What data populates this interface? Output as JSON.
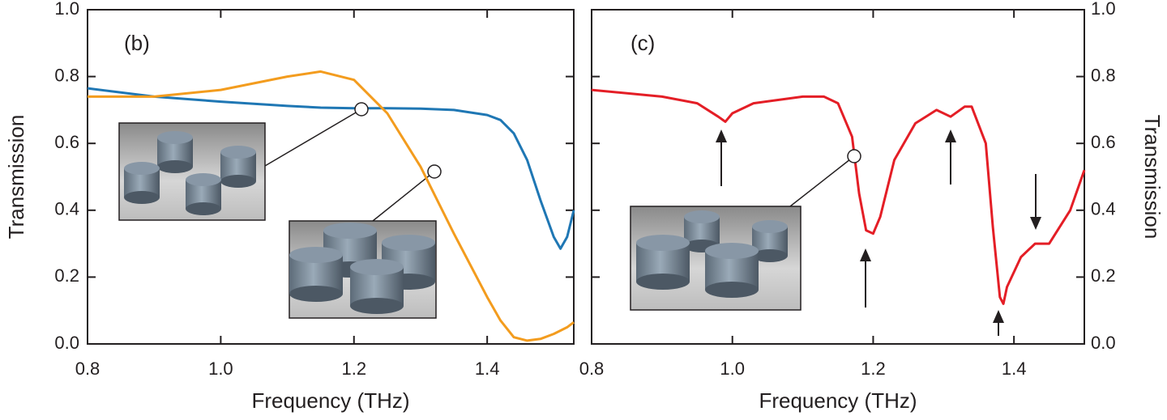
{
  "chart_data": [
    {
      "type": "line",
      "panel_label": "(b)",
      "x_label": "Frequency (THz)",
      "y_label": "Transmission",
      "x": [
        0.8,
        0.9,
        1.0,
        1.1,
        1.15,
        1.2,
        1.25,
        1.3,
        1.35,
        1.4,
        1.42,
        1.44,
        1.46,
        1.48,
        1.5,
        1.51,
        1.52,
        1.53
      ],
      "series": [
        {
          "color": "#1f77b4",
          "values": [
            0.765,
            0.74,
            0.725,
            0.712,
            0.707,
            0.705,
            0.705,
            0.704,
            0.7,
            0.685,
            0.67,
            0.63,
            0.55,
            0.43,
            0.32,
            0.285,
            0.32,
            0.4
          ]
        },
        {
          "color": "#f39c1e",
          "values": [
            0.74,
            0.74,
            0.76,
            0.8,
            0.815,
            0.79,
            0.69,
            0.53,
            0.33,
            0.14,
            0.07,
            0.02,
            0.01,
            0.015,
            0.03,
            0.04,
            0.05,
            0.065
          ]
        }
      ],
      "xlim": [
        0.8,
        1.53
      ],
      "xticks": [
        0.8,
        {
          "value": 1,
          "label": "1.0"
        },
        1.2,
        1.4
      ],
      "ylim": [
        0,
        1
      ],
      "yticks": [
        {
          "value": 0,
          "label": "0.0"
        },
        0.2,
        0.4,
        0.6,
        0.8,
        {
          "value": 1,
          "label": "1.0"
        }
      ],
      "y_axis_side": "left"
    },
    {
      "type": "line",
      "panel_label": "(c)",
      "x_label": "Frequency (THz)",
      "y_label": "Transmission",
      "x": [
        0.8,
        0.9,
        0.95,
        0.98,
        0.99,
        1.0,
        1.03,
        1.1,
        1.13,
        1.15,
        1.17,
        1.18,
        1.19,
        1.2,
        1.21,
        1.23,
        1.26,
        1.29,
        1.31,
        1.33,
        1.34,
        1.36,
        1.37,
        1.38,
        1.385,
        1.39,
        1.41,
        1.43,
        1.45,
        1.48,
        1.5
      ],
      "series": [
        {
          "color": "#e41e26",
          "values": [
            0.76,
            0.74,
            0.72,
            0.68,
            0.665,
            0.69,
            0.72,
            0.74,
            0.74,
            0.72,
            0.62,
            0.45,
            0.34,
            0.33,
            0.38,
            0.55,
            0.66,
            0.7,
            0.68,
            0.71,
            0.71,
            0.6,
            0.35,
            0.14,
            0.12,
            0.17,
            0.26,
            0.3,
            0.3,
            0.4,
            0.52
          ]
        }
      ],
      "xlim": [
        0.8,
        1.5
      ],
      "xticks": [
        0.8,
        {
          "value": 1,
          "label": "1.0"
        },
        1.2,
        1.4
      ],
      "ylim": [
        0,
        1
      ],
      "yticks": [
        {
          "value": 0,
          "label": "0.0"
        },
        0.2,
        0.4,
        0.6,
        0.8,
        {
          "value": 1,
          "label": "1.0"
        }
      ],
      "y_axis_side": "right"
    }
  ]
}
